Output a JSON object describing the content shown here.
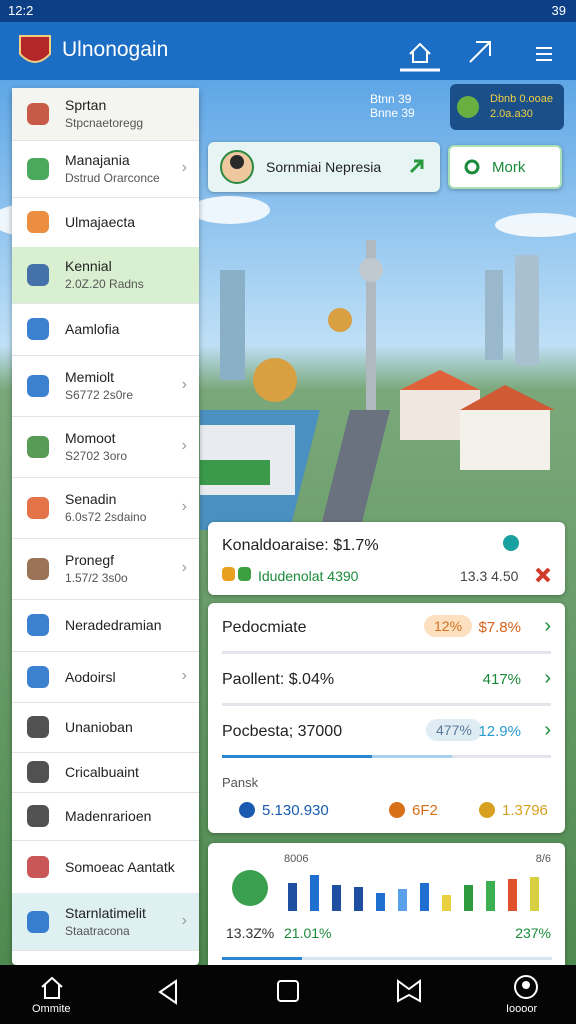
{
  "status_bar": {
    "time": "12:2",
    "battery": "39"
  },
  "app_bar": {
    "title": "Ulnonogain"
  },
  "menu": [
    {
      "title": "Sprtan",
      "subtitle": "Stpcnaetoregg"
    },
    {
      "title": "Manajania",
      "subtitle": "Dstrud Orarconce"
    },
    {
      "title": "Ulmajaecta"
    },
    {
      "title": "Kennial",
      "subtitle": "2.0Z.20 Radns"
    },
    {
      "title": "Aamlofia"
    },
    {
      "title": "Memiolt",
      "subtitle": "S6772 2s0re"
    },
    {
      "title": "Momoot",
      "subtitle": "S2702 3oro"
    },
    {
      "title": "Senadin",
      "subtitle": "6.0s72 2sdaino"
    },
    {
      "title": "Pronegf",
      "subtitle": "1.57/2 3s0o"
    },
    {
      "title": "Neradedramian"
    },
    {
      "title": "Aodoirsl"
    },
    {
      "title": "Unanioban"
    },
    {
      "title": "Cricalbuaint"
    },
    {
      "title": "Madenrarioen"
    },
    {
      "title": "Somoeac Aantatk"
    },
    {
      "title": "Starnlatimelit",
      "subtitle": "Staatracona"
    }
  ],
  "top_stats": {
    "label1": "Btnn",
    "value1": "39",
    "label2": "Bnne",
    "value2": "39",
    "badge_label": "Dbnb 0.ooae",
    "badge_value": "2.0a.a30"
  },
  "profile": {
    "name": "Sornmiai Nepresia",
    "button": "Mork"
  },
  "card1": {
    "title": "Konaldoaraise: $1.7%",
    "line": "Idudenolat 4390",
    "value": "13.3 4.50"
  },
  "card2": {
    "rows": [
      {
        "label": "Pedocmiate",
        "badge": "12%",
        "value": "$7.8%"
      },
      {
        "label": "Paollent: $.04%",
        "value": "417%"
      },
      {
        "label": "Pocbesta; 37000",
        "badge": "477%",
        "value": "12.9%"
      }
    ],
    "section": "Pansk",
    "stats": [
      "5.130.930",
      "6F2",
      "1.3796"
    ]
  },
  "card3": {
    "left_label": "8006",
    "right_label": "8/6",
    "bars": [
      70,
      90,
      65,
      60,
      45,
      55,
      70,
      40,
      65,
      75,
      80,
      85
    ],
    "bar_colors": [
      "#1e4fa0",
      "#1e6fd0",
      "#1e4fa0",
      "#1e4fa0",
      "#1e6fd0",
      "#5aa0e8",
      "#1e6fd0",
      "#e8d040",
      "#2e9a40",
      "#3ab050",
      "#e0502a",
      "#d8d040"
    ],
    "footer": [
      "13.3Z%",
      "21.01%",
      "237%"
    ]
  },
  "bottom_nav": {
    "left": "Ommite",
    "right": "Ioooor"
  }
}
